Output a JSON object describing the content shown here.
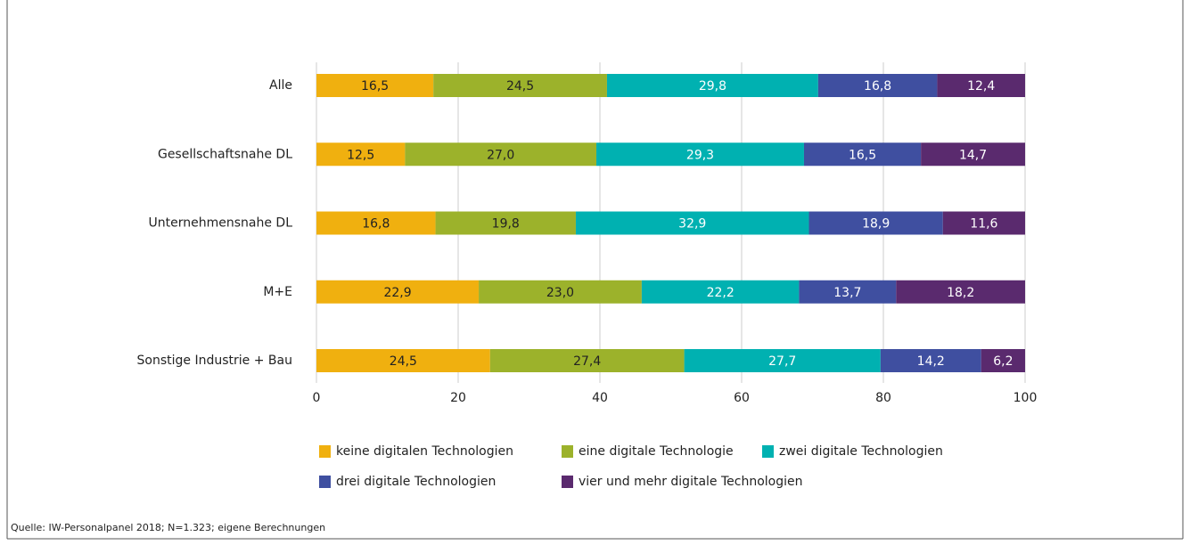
{
  "chart_data": {
    "type": "stacked-bar-horizontal",
    "categories": [
      "Alle",
      "Gesellschaftsnahe DL",
      "Unternehmensnahe DL",
      "M+E",
      "Sonstige Industrie + Bau"
    ],
    "series": [
      {
        "name": "keine digitalen Technologien",
        "color": "#f0b00f",
        "values": [
          16.5,
          12.5,
          16.8,
          22.9,
          24.5
        ],
        "value_labels": [
          "16,5",
          "12,5",
          "16,8",
          "22,9",
          "24,5"
        ]
      },
      {
        "name": "eine digitale Technologie",
        "color": "#9cb22b",
        "values": [
          24.5,
          27.0,
          19.8,
          23.0,
          27.4
        ],
        "value_labels": [
          "24,5",
          "27,0",
          "19,8",
          "23,0",
          "27,4"
        ]
      },
      {
        "name": "zwei digitale Technologien",
        "color": "#00b1b1",
        "values": [
          29.8,
          29.3,
          32.9,
          22.2,
          27.7
        ],
        "value_labels": [
          "29,8",
          "29,3",
          "32,9",
          "22,2",
          "27,7"
        ]
      },
      {
        "name": "drei digitale Technologien",
        "color": "#3f4fa0",
        "values": [
          16.8,
          16.5,
          18.9,
          13.7,
          14.2
        ],
        "value_labels": [
          "16,8",
          "16,5",
          "18,9",
          "13,7",
          "14,2"
        ]
      },
      {
        "name": "vier und mehr digitale Technologien",
        "color": "#5a2a6e",
        "values": [
          12.4,
          14.7,
          11.6,
          18.2,
          6.2
        ],
        "value_labels": [
          "12,4",
          "14,7",
          "11,6",
          "18,2",
          "6,2"
        ]
      }
    ],
    "xlim": [
      0,
      100
    ],
    "xticks": [
      0,
      20,
      40,
      60,
      80,
      100
    ],
    "grid": true
  },
  "source": "Quelle: IW-Personalpanel 2018; N=1.323; eigene Berechnungen"
}
